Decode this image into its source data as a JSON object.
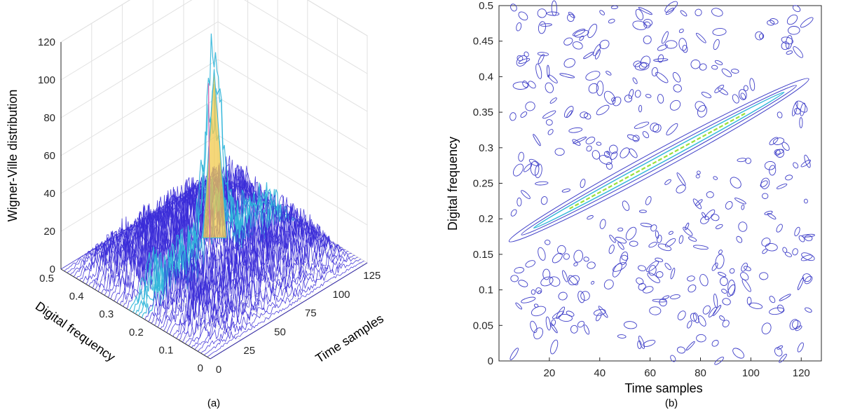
{
  "chart_data": [
    {
      "panel": "a",
      "type": "surface3d",
      "caption": "(a)",
      "zlabel": "Wigner-Ville distribution",
      "ylabel": "Digital frequency",
      "xlabel": "Time samples",
      "zlim": [
        0,
        120
      ],
      "z_ticks": [
        0,
        20,
        40,
        60,
        80,
        100,
        120
      ],
      "z_tick_labels": [
        "0",
        "20",
        "40",
        "60",
        "80",
        "100",
        "120"
      ],
      "y_ticks": [
        0,
        0.1,
        0.2,
        0.3,
        0.4,
        0.5
      ],
      "y_tick_labels": [
        "0",
        "0.1",
        "0.2",
        "0.3",
        "0.4",
        "0.5"
      ],
      "x_ticks": [
        0,
        25,
        50,
        75,
        100,
        125
      ],
      "x_tick_labels": [
        "0",
        "25",
        "50",
        "75",
        "100",
        "125"
      ],
      "xlim": [
        0,
        128
      ],
      "ylim": [
        0,
        0.5
      ],
      "peak": {
        "time": 64,
        "frequency": 0.25,
        "value": 104
      },
      "noise_floor_max": 30,
      "colors": {
        "low": "#3a2bd8",
        "mid": "#2fb5d9",
        "high": "#f2c94c"
      }
    },
    {
      "panel": "b",
      "type": "contour",
      "caption": "(b)",
      "xlabel": "Time samples",
      "ylabel": "Digital frequency",
      "xlim": [
        0,
        128
      ],
      "ylim": [
        0,
        0.5
      ],
      "x_ticks": [
        20,
        40,
        60,
        80,
        100,
        120
      ],
      "x_tick_labels": [
        "20",
        "40",
        "60",
        "80",
        "100",
        "120"
      ],
      "y_ticks": [
        0,
        0.05,
        0.1,
        0.15,
        0.2,
        0.25,
        0.3,
        0.35,
        0.4,
        0.45,
        0.5
      ],
      "y_tick_labels": [
        "0",
        "0.05",
        "0.1",
        "0.15",
        "0.2",
        "0.25",
        "0.3",
        "0.35",
        "0.4",
        "0.45",
        "0.5"
      ],
      "ridge": {
        "start": [
          5,
          0.17
        ],
        "end": [
          122,
          0.395
        ]
      },
      "colors": {
        "contour": "#3f3fc8",
        "ridge_inner": "#2fb5d9",
        "ridge_core": "#9be03a"
      }
    }
  ]
}
